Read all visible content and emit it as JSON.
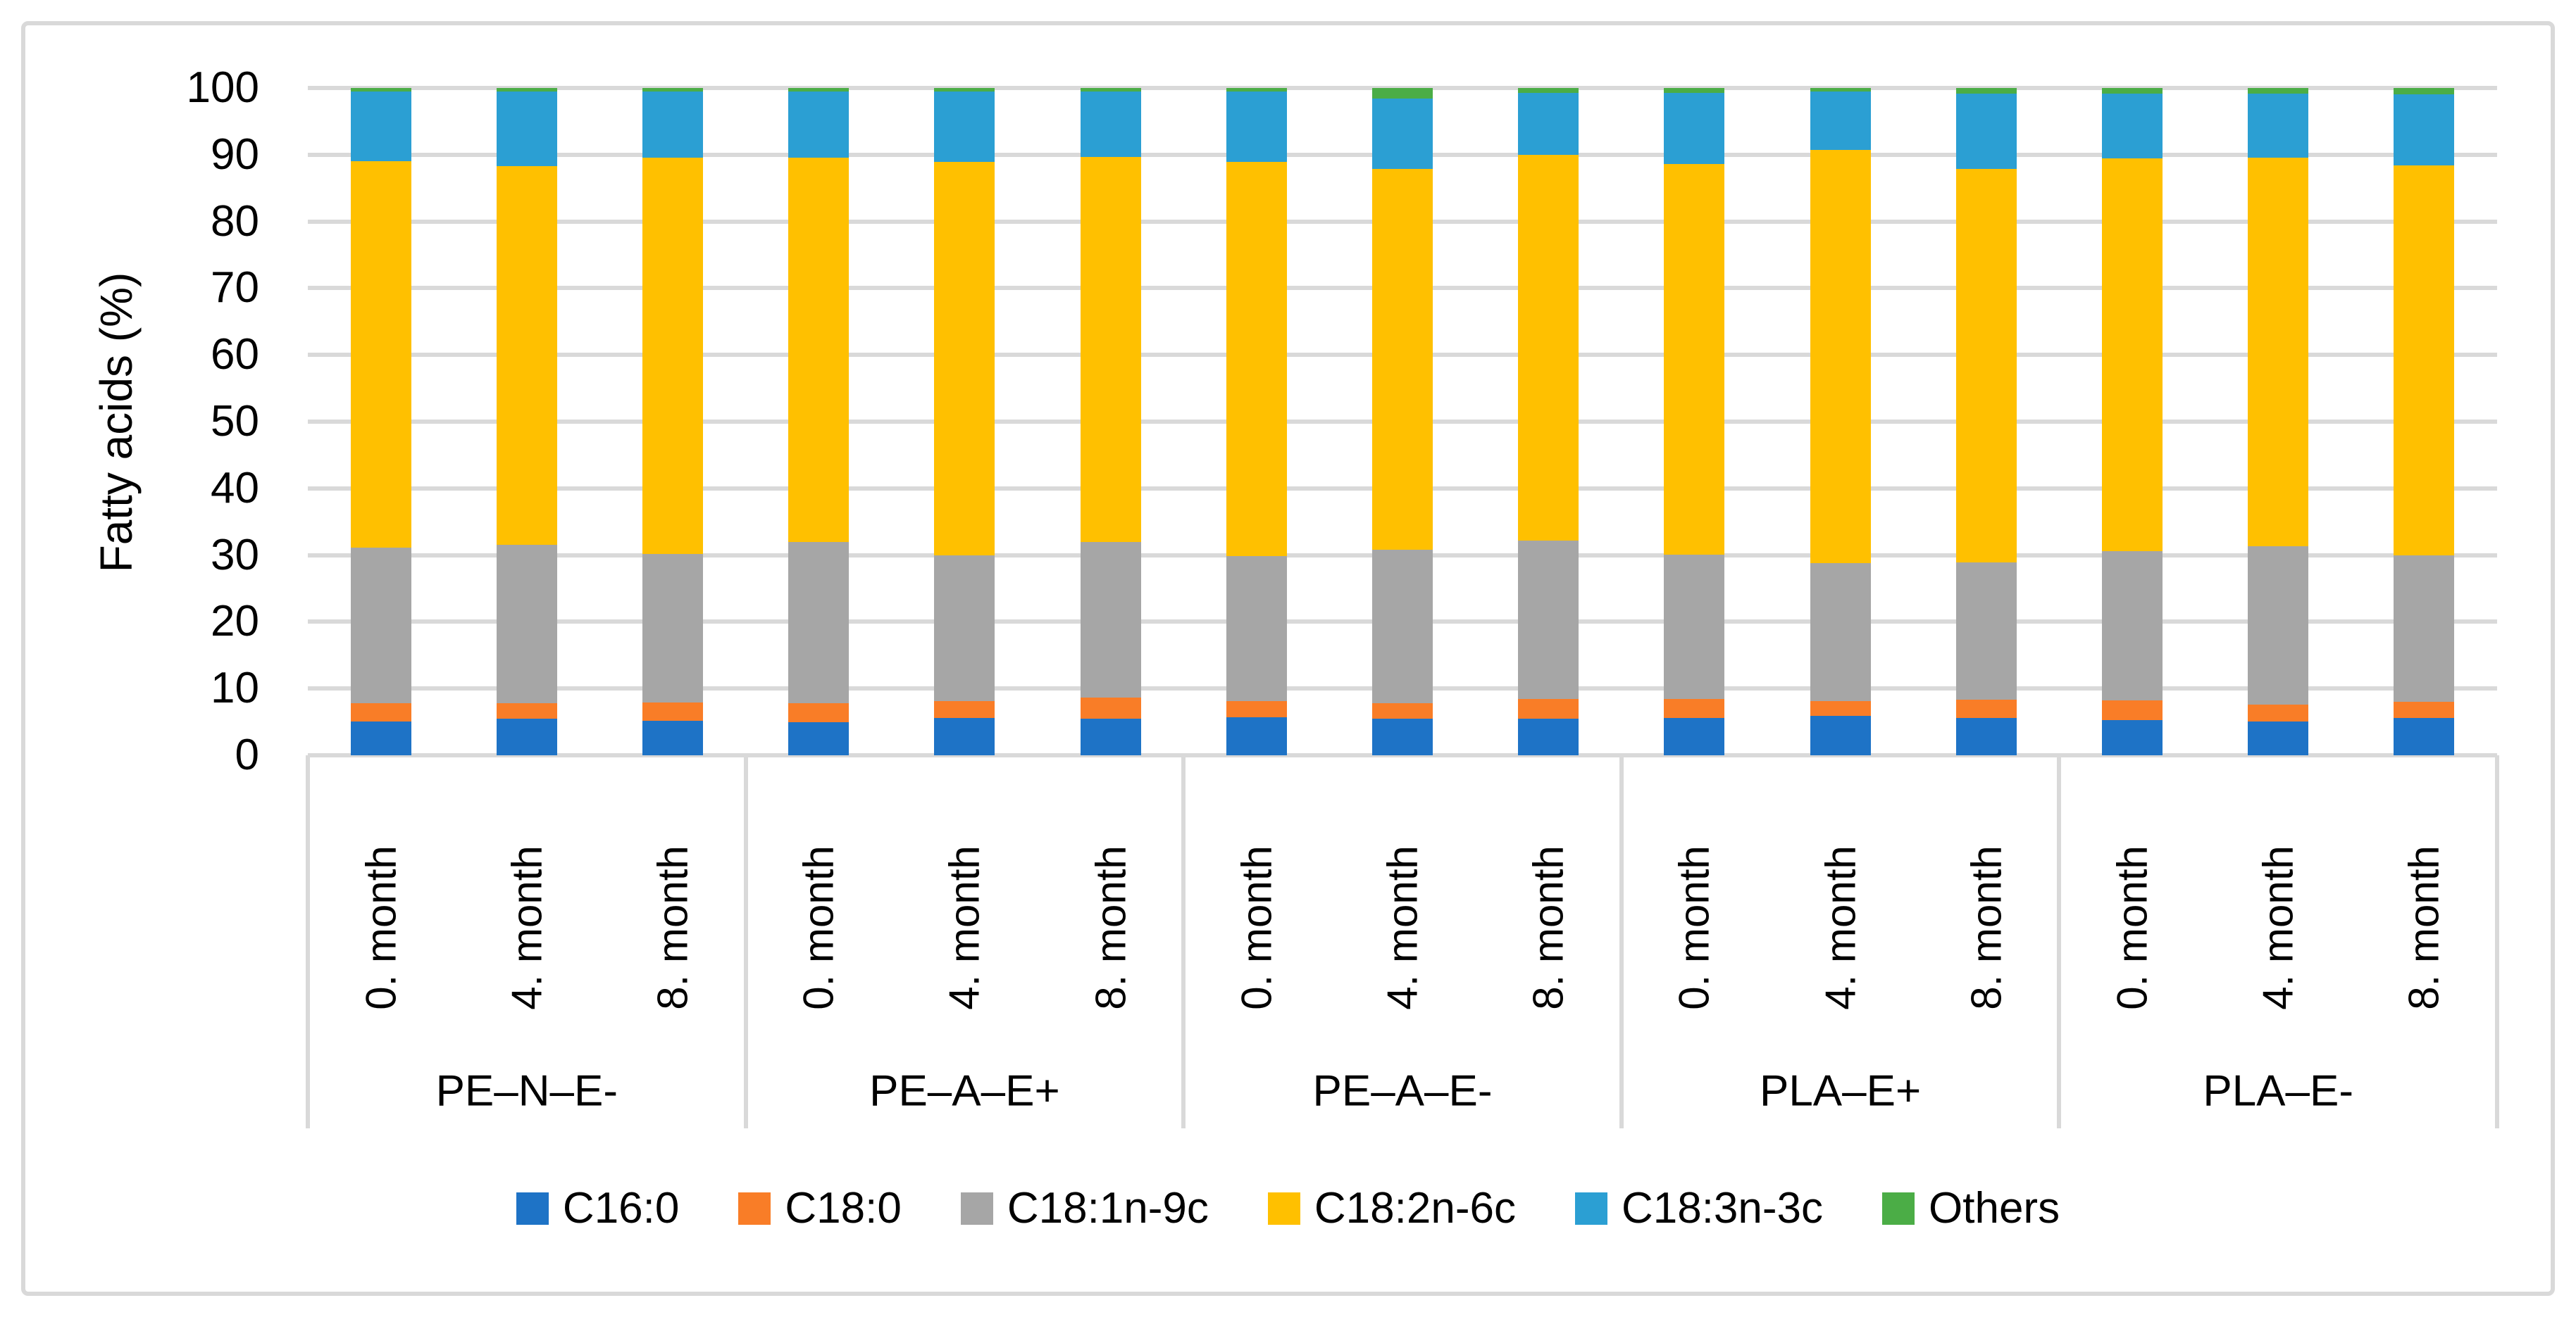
{
  "chart_data": {
    "type": "bar",
    "stacked": true,
    "title": "",
    "xlabel": "",
    "ylabel": "Fatty acids (%)",
    "ylim": [
      0,
      100
    ],
    "ytick_step": 10,
    "yticks": [
      0,
      10,
      20,
      30,
      40,
      50,
      60,
      70,
      80,
      90,
      100
    ],
    "grid": true,
    "legend_position": "bottom",
    "group_labels": [
      "PE–N–E-",
      "PE–A–E+",
      "PE–A–E-",
      "PLA–E+",
      "PLA–E-"
    ],
    "month_labels": [
      "0. month",
      "4. month",
      "8. month"
    ],
    "categories": [
      {
        "group": "PE–N–E-",
        "month": "0. month"
      },
      {
        "group": "PE–N–E-",
        "month": "4. month"
      },
      {
        "group": "PE–N–E-",
        "month": "8. month"
      },
      {
        "group": "PE–A–E+",
        "month": "0. month"
      },
      {
        "group": "PE–A–E+",
        "month": "4. month"
      },
      {
        "group": "PE–A–E+",
        "month": "8. month"
      },
      {
        "group": "PE–A–E-",
        "month": "0. month"
      },
      {
        "group": "PE–A–E-",
        "month": "4. month"
      },
      {
        "group": "PE–A–E-",
        "month": "8. month"
      },
      {
        "group": "PLA–E+",
        "month": "0. month"
      },
      {
        "group": "PLA–E+",
        "month": "4. month"
      },
      {
        "group": "PLA–E+",
        "month": "8. month"
      },
      {
        "group": "PLA–E-",
        "month": "0. month"
      },
      {
        "group": "PLA–E-",
        "month": "4. month"
      },
      {
        "group": "PLA–E-",
        "month": "8. month"
      }
    ],
    "series": [
      {
        "name": "C16:0",
        "color": "#1e73c6",
        "values": [
          5.1,
          5.5,
          5.2,
          5.0,
          5.6,
          5.5,
          5.7,
          5.5,
          5.5,
          5.6,
          5.9,
          5.6,
          5.3,
          5.1,
          5.6
        ]
      },
      {
        "name": "C18:0",
        "color": "#f97d27",
        "values": [
          2.7,
          2.3,
          2.7,
          2.8,
          2.5,
          3.1,
          2.4,
          2.3,
          2.9,
          2.8,
          2.2,
          2.7,
          2.9,
          2.5,
          2.4
        ]
      },
      {
        "name": "C18:1n-9c",
        "color": "#a6a6a6",
        "values": [
          23.3,
          23.7,
          22.3,
          24.2,
          21.9,
          23.4,
          21.7,
          23.0,
          23.8,
          21.7,
          20.7,
          20.6,
          22.4,
          23.7,
          22.0
        ]
      },
      {
        "name": "C18:2n-6c",
        "color": "#ffc000",
        "values": [
          57.9,
          56.8,
          59.4,
          57.6,
          58.9,
          57.7,
          59.1,
          57.1,
          57.8,
          58.5,
          61.9,
          59.0,
          58.8,
          58.3,
          58.4
        ]
      },
      {
        "name": "C18:3n-3c",
        "color": "#2b9fd3",
        "values": [
          10.5,
          11.2,
          9.9,
          9.9,
          10.6,
          9.8,
          10.6,
          10.5,
          9.3,
          10.7,
          8.8,
          11.3,
          9.8,
          9.6,
          10.6
        ]
      },
      {
        "name": "Others",
        "color": "#4bad46",
        "values": [
          0.5,
          0.5,
          0.5,
          0.5,
          0.5,
          0.5,
          0.5,
          1.6,
          0.7,
          0.7,
          0.5,
          0.8,
          0.8,
          0.8,
          1.0
        ]
      }
    ],
    "colors": {
      "gridline": "#d9d9d9",
      "frame_border": "#d9d9d9",
      "text": "#000000"
    }
  }
}
